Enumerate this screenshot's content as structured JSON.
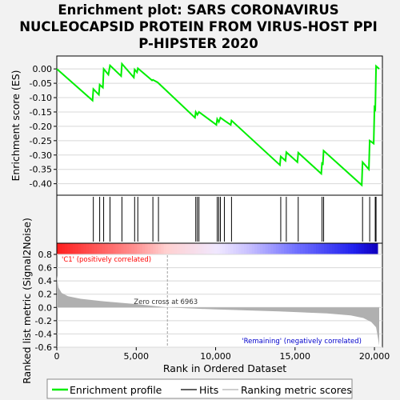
{
  "title_lines": [
    "Enrichment plot: SARS CORONAVIRUS",
    "NUCLEOCAPSID PROTEIN FROM VIRUS-HOST PPI",
    "P-HIPSTER 2020"
  ],
  "colors": {
    "es_line": "#00ee00",
    "hits": "#000000",
    "metric_fill": "#b0b0b0",
    "positive_label": "#ff0000",
    "negative_label": "#0000cc",
    "zero_cross_line": "#a0a0a0",
    "background": "#f2f2f2",
    "plot_bg": "#ffffff"
  },
  "chart_data": [
    {
      "type": "line",
      "name": "enrichment-profile",
      "ylabel": "Enrichment score (ES)",
      "xlim": [
        0,
        20500
      ],
      "ylim": [
        -0.44,
        0.045
      ],
      "yticks": [
        0.0,
        -0.05,
        -0.1,
        -0.15,
        -0.2,
        -0.25,
        -0.3,
        -0.35,
        -0.4
      ],
      "ytick_labels": [
        "0.00",
        "-0.05",
        "-0.10",
        "-0.15",
        "-0.20",
        "-0.25",
        "-0.30",
        "-0.35",
        "-0.40"
      ],
      "points": [
        [
          0,
          0.0
        ],
        [
          2250,
          -0.11
        ],
        [
          2300,
          -0.07
        ],
        [
          2650,
          -0.09
        ],
        [
          2700,
          -0.055
        ],
        [
          2900,
          -0.065
        ],
        [
          2950,
          0.0
        ],
        [
          3250,
          -0.02
        ],
        [
          3350,
          0.012
        ],
        [
          4050,
          -0.025
        ],
        [
          4100,
          0.018
        ],
        [
          4850,
          -0.03
        ],
        [
          4900,
          -0.002
        ],
        [
          5050,
          -0.012
        ],
        [
          5100,
          0.002
        ],
        [
          6000,
          -0.04
        ],
        [
          6050,
          -0.038
        ],
        [
          6350,
          -0.047
        ],
        [
          8700,
          -0.17
        ],
        [
          8750,
          -0.15
        ],
        [
          8850,
          -0.16
        ],
        [
          8950,
          -0.15
        ],
        [
          10050,
          -0.195
        ],
        [
          10100,
          -0.175
        ],
        [
          10200,
          -0.185
        ],
        [
          10300,
          -0.17
        ],
        [
          10550,
          -0.18
        ],
        [
          10950,
          -0.195
        ],
        [
          11000,
          -0.18
        ],
        [
          14050,
          -0.335
        ],
        [
          14100,
          -0.305
        ],
        [
          14400,
          -0.32
        ],
        [
          14450,
          -0.29
        ],
        [
          15150,
          -0.325
        ],
        [
          15200,
          -0.292
        ],
        [
          16650,
          -0.365
        ],
        [
          16700,
          -0.325
        ],
        [
          16750,
          -0.335
        ],
        [
          16800,
          -0.285
        ],
        [
          19200,
          -0.405
        ],
        [
          19250,
          -0.325
        ],
        [
          19650,
          -0.35
        ],
        [
          19700,
          -0.25
        ],
        [
          19950,
          -0.26
        ],
        [
          20000,
          -0.135
        ],
        [
          20050,
          -0.14
        ],
        [
          20100,
          0.01
        ],
        [
          20300,
          0.0
        ]
      ]
    },
    {
      "type": "hits",
      "name": "hits",
      "positions": [
        2300,
        2700,
        2950,
        3350,
        4100,
        4900,
        5100,
        6050,
        6400,
        8750,
        8850,
        8950,
        10100,
        10200,
        10300,
        10550,
        11000,
        14100,
        14450,
        15200,
        16700,
        16800,
        19250,
        19700,
        20050,
        20100
      ]
    },
    {
      "type": "area",
      "name": "ranking-metric",
      "xlabel": "Rank in Ordered Dataset",
      "ylabel": "Ranked list metric (Signal2Noise)",
      "ylim": [
        -0.6,
        0.8
      ],
      "yticks": [
        0.8,
        0.6,
        0.4,
        0.2,
        0.0,
        -0.2,
        -0.4,
        -0.6
      ],
      "ytick_labels": [
        "0.8",
        "0.6",
        "0.4",
        "0.2",
        "0.0",
        "-0.2",
        "-0.4",
        "-0.6"
      ],
      "xticks": [
        0,
        5000,
        10000,
        15000,
        20000
      ],
      "xtick_labels": [
        "0",
        "5,000",
        "10,000",
        "15,000",
        "20,000"
      ],
      "points": [
        [
          0,
          0.48
        ],
        [
          100,
          0.3
        ],
        [
          300,
          0.22
        ],
        [
          700,
          0.17
        ],
        [
          1500,
          0.13
        ],
        [
          3000,
          0.09
        ],
        [
          5000,
          0.05
        ],
        [
          6963,
          0.0
        ],
        [
          10000,
          -0.03
        ],
        [
          14000,
          -0.06
        ],
        [
          17000,
          -0.09
        ],
        [
          18500,
          -0.12
        ],
        [
          19300,
          -0.16
        ],
        [
          19800,
          -0.22
        ],
        [
          20100,
          -0.3
        ],
        [
          20250,
          -0.5
        ],
        [
          20300,
          -0.58
        ]
      ],
      "zero_cross": 6963,
      "zero_cross_label": "Zero cross at 6963",
      "positive_label": "'C1' (positively correlated)",
      "negative_label": "'Remaining' (negatively correlated)"
    }
  ],
  "legend": [
    {
      "label": "Enrichment profile",
      "color": "#00ee00",
      "style": "thick"
    },
    {
      "label": "Hits",
      "color": "#000000",
      "style": "thin"
    },
    {
      "label": "Ranking metric scores",
      "color": "#b0b0b0",
      "style": "thin"
    }
  ]
}
